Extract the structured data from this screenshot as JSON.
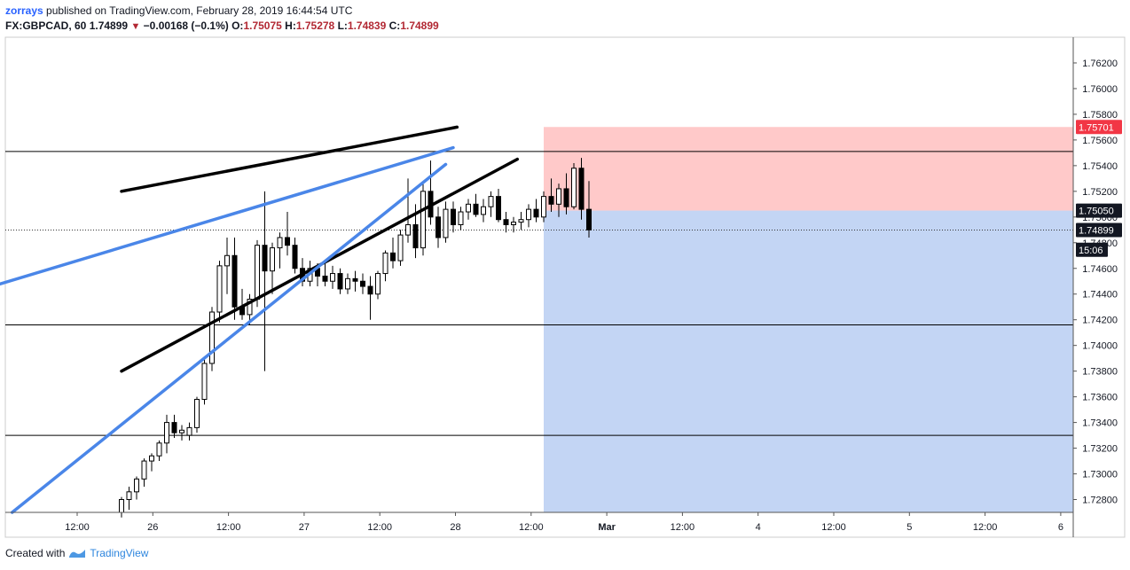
{
  "header": {
    "author": "zorrays",
    "published": "published on TradingView.com, February 28, 2019 16:44:54 UTC"
  },
  "ohlc": {
    "symbol": "FX:GBPCAD, 60",
    "last": "1.74899",
    "arrow": "▼",
    "change": "−0.00168 (−0.1%)",
    "o_label": "O:",
    "o": "1.75075",
    "h_label": "H:",
    "h": "1.75278",
    "l_label": "L:",
    "l": "1.74839",
    "c_label": "C:",
    "c": "1.74899"
  },
  "footer": {
    "created_with": "Created with",
    "brand": "TradingView"
  },
  "chart_data": {
    "type": "candlestick",
    "ylim": [
      1.727,
      1.764
    ],
    "y_ticks": [
      "1.72800",
      "1.73000",
      "1.73200",
      "1.73400",
      "1.73600",
      "1.73800",
      "1.74000",
      "1.74200",
      "1.74400",
      "1.74600",
      "1.74800",
      "1.75000",
      "1.75200",
      "1.75400",
      "1.75600",
      "1.75800",
      "1.76000",
      "1.76200"
    ],
    "x_ticks": [
      "12:00",
      "26",
      "12:00",
      "27",
      "12:00",
      "28",
      "12:00",
      "Mar",
      "12:00",
      "4",
      "12:00",
      "5",
      "12:00",
      "6"
    ],
    "price_labels": [
      {
        "text": "1.75701",
        "value": 1.75701,
        "color": "#f23645"
      },
      {
        "text": "1.75050",
        "value": 1.7505,
        "color": "#131722"
      },
      {
        "text": "1.74899",
        "value": 1.74899,
        "color": "#131722"
      },
      {
        "text": "15:06",
        "value": 1.74745,
        "color": "#131722"
      }
    ],
    "horizontal_lines": [
      1.7551,
      1.7416,
      1.733
    ],
    "dotted_line": 1.74899,
    "position": {
      "type": "short",
      "entry": 1.7505,
      "stop": 1.75701,
      "target_below_view": true,
      "stop_color": "#ffc9c9",
      "target_color": "#c3d5f4"
    },
    "trendlines": [
      {
        "color": "#000000",
        "points": [
          [
            0,
            1.752
          ],
          [
            44.5,
            1.757
          ]
        ]
      },
      {
        "color": "#000000",
        "points": [
          [
            0,
            1.738
          ],
          [
            52.5,
            1.7545
          ]
        ]
      },
      {
        "color": "#4a86e8",
        "points": [
          [
            -32.5,
            1.7419
          ],
          [
            44.0,
            1.7554
          ]
        ]
      },
      {
        "color": "#4a86e8",
        "points": [
          [
            -14.5,
            1.727
          ],
          [
            43.0,
            1.7541
          ]
        ]
      }
    ],
    "candles": [
      [
        1.727,
        1.7282,
        1.7266,
        1.728
      ],
      [
        1.728,
        1.729,
        1.7272,
        1.7286
      ],
      [
        1.7286,
        1.7298,
        1.728,
        1.7296
      ],
      [
        1.7296,
        1.7312,
        1.729,
        1.731
      ],
      [
        1.731,
        1.7316,
        1.7302,
        1.7314
      ],
      [
        1.7314,
        1.7326,
        1.731,
        1.7324
      ],
      [
        1.7324,
        1.7346,
        1.7316,
        1.734
      ],
      [
        1.734,
        1.7346,
        1.7328,
        1.7332
      ],
      [
        1.7332,
        1.7338,
        1.7326,
        1.7334
      ],
      [
        1.733,
        1.734,
        1.7326,
        1.7336
      ],
      [
        1.7336,
        1.736,
        1.7332,
        1.7358
      ],
      [
        1.7358,
        1.739,
        1.7354,
        1.7386
      ],
      [
        1.7386,
        1.743,
        1.738,
        1.7426
      ],
      [
        1.7426,
        1.7466,
        1.7418,
        1.7462
      ],
      [
        1.7462,
        1.7484,
        1.744,
        1.747
      ],
      [
        1.747,
        1.7484,
        1.742,
        1.743
      ],
      [
        1.743,
        1.7444,
        1.742,
        1.7424
      ],
      [
        1.7424,
        1.744,
        1.7416,
        1.7436
      ],
      [
        1.7436,
        1.7482,
        1.743,
        1.7478
      ],
      [
        1.7478,
        1.752,
        1.738,
        1.7458
      ],
      [
        1.7458,
        1.748,
        1.744,
        1.7476
      ],
      [
        1.7476,
        1.7488,
        1.746,
        1.7484
      ],
      [
        1.7484,
        1.7504,
        1.747,
        1.7478
      ],
      [
        1.7478,
        1.7484,
        1.7456,
        1.746
      ],
      [
        1.746,
        1.7468,
        1.7446,
        1.745
      ],
      [
        1.745,
        1.7466,
        1.7446,
        1.746
      ],
      [
        1.746,
        1.7464,
        1.7446,
        1.7454
      ],
      [
        1.7454,
        1.7464,
        1.7446,
        1.745
      ],
      [
        1.745,
        1.7462,
        1.7444,
        1.7456
      ],
      [
        1.7456,
        1.746,
        1.744,
        1.7444
      ],
      [
        1.7444,
        1.7456,
        1.744,
        1.7452
      ],
      [
        1.7452,
        1.7458,
        1.7442,
        1.745
      ],
      [
        1.745,
        1.7456,
        1.744,
        1.7446
      ],
      [
        1.7446,
        1.7454,
        1.742,
        1.744
      ],
      [
        1.744,
        1.7458,
        1.7436,
        1.7456
      ],
      [
        1.7456,
        1.7474,
        1.745,
        1.7472
      ],
      [
        1.7472,
        1.7484,
        1.746,
        1.7466
      ],
      [
        1.7466,
        1.749,
        1.7462,
        1.7486
      ],
      [
        1.7486,
        1.753,
        1.748,
        1.7494
      ],
      [
        1.7494,
        1.751,
        1.7468,
        1.7476
      ],
      [
        1.7476,
        1.7526,
        1.747,
        1.752
      ],
      [
        1.752,
        1.7544,
        1.7494,
        1.75
      ],
      [
        1.75,
        1.7508,
        1.7476,
        1.7484
      ],
      [
        1.7484,
        1.7512,
        1.748,
        1.7506
      ],
      [
        1.7506,
        1.7512,
        1.7488,
        1.7494
      ],
      [
        1.7494,
        1.7508,
        1.749,
        1.7504
      ],
      [
        1.7504,
        1.7514,
        1.7498,
        1.751
      ],
      [
        1.751,
        1.7518,
        1.75,
        1.7502
      ],
      [
        1.7502,
        1.7514,
        1.7496,
        1.7508
      ],
      [
        1.7508,
        1.752,
        1.75,
        1.7516
      ],
      [
        1.7516,
        1.7522,
        1.7496,
        1.7498
      ],
      [
        1.7498,
        1.7504,
        1.7488,
        1.7494
      ],
      [
        1.7494,
        1.75,
        1.7488,
        1.7496
      ],
      [
        1.7496,
        1.7504,
        1.749,
        1.7498
      ],
      [
        1.7498,
        1.751,
        1.7492,
        1.7506
      ],
      [
        1.7506,
        1.7514,
        1.7496,
        1.75
      ],
      [
        1.75,
        1.752,
        1.7496,
        1.7516
      ],
      [
        1.7516,
        1.753,
        1.7504,
        1.751
      ],
      [
        1.751,
        1.7526,
        1.75,
        1.7522
      ],
      [
        1.7522,
        1.7534,
        1.7502,
        1.7508
      ],
      [
        1.7508,
        1.7542,
        1.7506,
        1.7538
      ],
      [
        1.7538,
        1.7546,
        1.7498,
        1.7506
      ],
      [
        1.7506,
        1.7528,
        1.7484,
        1.749
      ]
    ]
  }
}
